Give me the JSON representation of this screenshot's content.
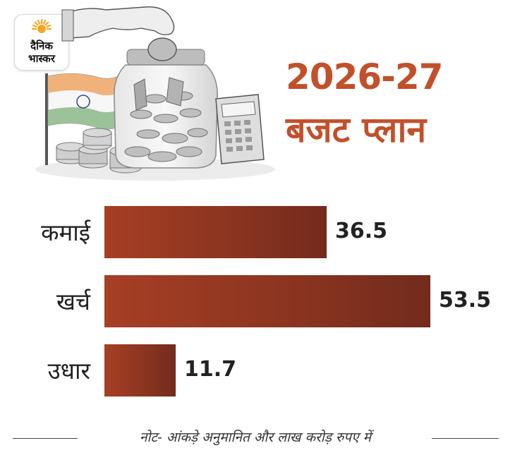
{
  "logo": {
    "line1": "दैनिक",
    "line2": "भास्कर"
  },
  "title": {
    "line1": "2026-27",
    "line2": "बजट प्लान"
  },
  "chart_data": {
    "type": "bar",
    "orientation": "horizontal",
    "categories": [
      "कमाई",
      "खर्च",
      "उधार"
    ],
    "values": [
      36.5,
      53.5,
      11.7
    ],
    "value_labels": [
      "36.5",
      "53.5",
      "11.7"
    ],
    "title": "2026-27 बजट प्लान",
    "xlabel": "",
    "ylabel": "",
    "xlim": [
      0,
      53.5
    ],
    "grid": false,
    "colors": {
      "bar": "#8c3520",
      "bar_light": "#a63f24",
      "bar_dark": "#732b1c"
    }
  },
  "note": "नोट- आंकड़े अनुमानित और लाख करोड़ रुपए में",
  "colors": {
    "title": "#c2502b",
    "text": "#222222"
  }
}
